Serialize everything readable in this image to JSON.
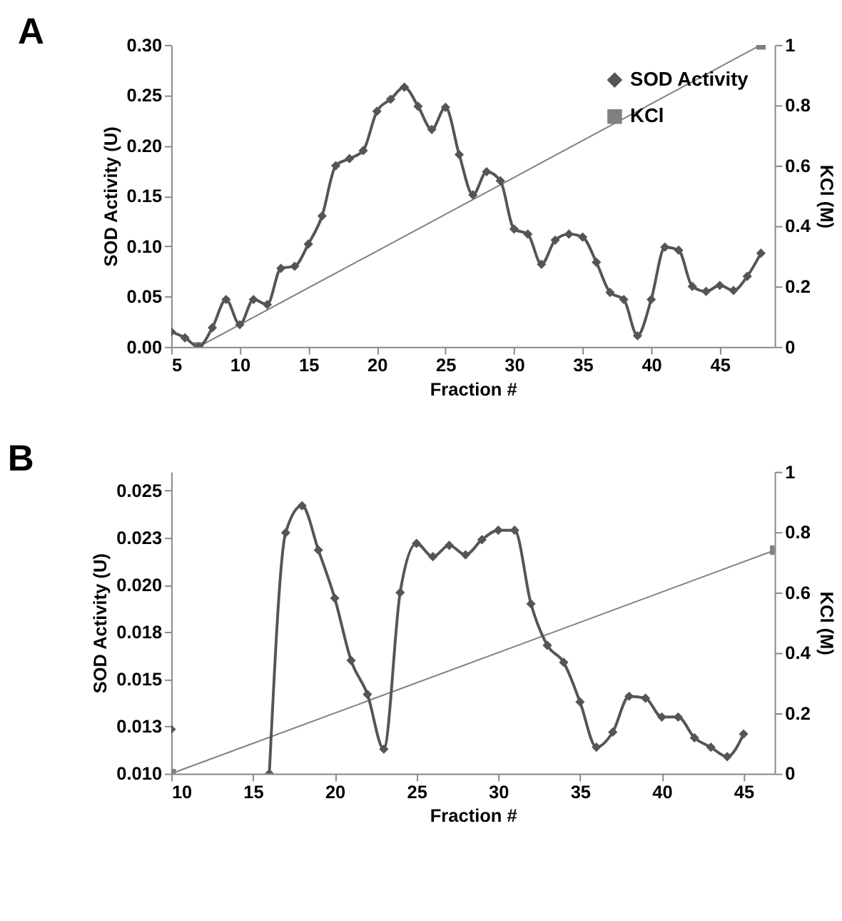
{
  "chart_data": [
    {
      "type": "line",
      "title": "A",
      "xlabel": "Fraction #",
      "ylabel": "SOD Activity (U)",
      "y2label": "KCl (M)",
      "xlim": [
        5,
        49
      ],
      "xticks": [
        5,
        10,
        15,
        20,
        25,
        30,
        35,
        40,
        45
      ],
      "ylim": [
        0,
        0.3
      ],
      "yticks": [
        {
          "value": 0,
          "label": "0.00"
        },
        {
          "value": 0.05,
          "label": "0.05"
        },
        {
          "value": 0.1,
          "label": "0.10"
        },
        {
          "value": 0.15,
          "label": "0.15"
        },
        {
          "value": 0.2,
          "label": "0.20"
        },
        {
          "value": 0.25,
          "label": "0.25"
        },
        {
          "value": 0.3,
          "label": "0.30"
        }
      ],
      "y2lim": [
        0,
        1
      ],
      "y2ticks": [
        0,
        0.2,
        0.4,
        0.6,
        0.8,
        1
      ],
      "legend": "top right",
      "grid": false,
      "series": [
        {
          "name": "SOD Activity",
          "color": "#555555",
          "marker": "diamond",
          "x": [
            5,
            6,
            7,
            8,
            9,
            10,
            11,
            12,
            13,
            14,
            15,
            16,
            17,
            18,
            19,
            20,
            21,
            22,
            23,
            24,
            25,
            26,
            27,
            28,
            29,
            30,
            31,
            32,
            33,
            34,
            35,
            36,
            37,
            38,
            39,
            40,
            41,
            42,
            43,
            44,
            45,
            46,
            47,
            48
          ],
          "values": [
            0.015,
            0.009,
            0.0,
            0.019,
            0.047,
            0.022,
            0.047,
            0.042,
            0.078,
            0.08,
            0.102,
            0.13,
            0.18,
            0.187,
            0.195,
            0.234,
            0.246,
            0.258,
            0.239,
            0.216,
            0.238,
            0.191,
            0.151,
            0.174,
            0.165,
            0.117,
            0.112,
            0.082,
            0.106,
            0.112,
            0.109,
            0.084,
            0.054,
            0.047,
            0.011,
            0.047,
            0.099,
            0.096,
            0.06,
            0.055,
            0.061,
            0.056,
            0.07,
            0.093
          ]
        },
        {
          "name": "KCl",
          "color": "#808080",
          "marker": "square",
          "axis": "y2",
          "x": [
            7,
            48
          ],
          "values": [
            0,
            1
          ]
        }
      ]
    },
    {
      "type": "line",
      "title": "B",
      "xlabel": "Fraction #",
      "ylabel": "SOD Activity (U)",
      "y2label": "KCl (M)",
      "xlim": [
        10,
        46.9
      ],
      "xticks": [
        10,
        15,
        20,
        25,
        30,
        35,
        40,
        45
      ],
      "ylim": [
        0.01,
        0.026
      ],
      "yticks": [
        {
          "value": 0.01,
          "label": "0.010"
        },
        {
          "value": 0.0125,
          "label": "0.013"
        },
        {
          "value": 0.015,
          "label": "0.015"
        },
        {
          "value": 0.0175,
          "label": "0.018"
        },
        {
          "value": 0.02,
          "label": "0.020"
        },
        {
          "value": 0.0225,
          "label": "0.023"
        },
        {
          "value": 0.025,
          "label": "0.025"
        }
      ],
      "y2lim": [
        0,
        1
      ],
      "y2ticks": [
        0,
        0.2,
        0.4,
        0.6,
        0.8,
        1
      ],
      "legend": "top right",
      "grid": false,
      "series": [
        {
          "name": "SOD Activity",
          "color": "#555555",
          "marker": "diamond",
          "x": [
            10,
            11,
            12,
            13,
            14,
            15,
            16,
            17,
            18,
            19,
            20,
            21,
            22,
            23,
            24,
            25,
            26,
            27,
            28,
            29,
            30,
            31,
            32,
            33,
            34,
            35,
            36,
            37,
            38,
            39,
            40,
            41,
            42,
            43,
            44,
            45
          ],
          "values": [
            0.01235,
            null,
            null,
            null,
            null,
            null,
            0.01,
            0.02277,
            0.0242,
            0.02185,
            0.0193,
            0.016,
            0.0142,
            0.0113,
            0.0196,
            0.0222,
            0.0215,
            0.0221,
            0.0216,
            0.0224,
            0.0229,
            0.0229,
            0.019,
            0.0168,
            0.0159,
            0.0138,
            0.0114,
            0.0122,
            0.0141,
            0.014,
            0.013,
            0.013,
            0.0119,
            0.0114,
            0.0109,
            0.0121
          ]
        },
        {
          "name": "KCl",
          "color": "#808080",
          "marker": "square",
          "axis": "y2",
          "x": [
            10,
            46.9
          ],
          "values": [
            0,
            0.74
          ]
        }
      ]
    }
  ]
}
